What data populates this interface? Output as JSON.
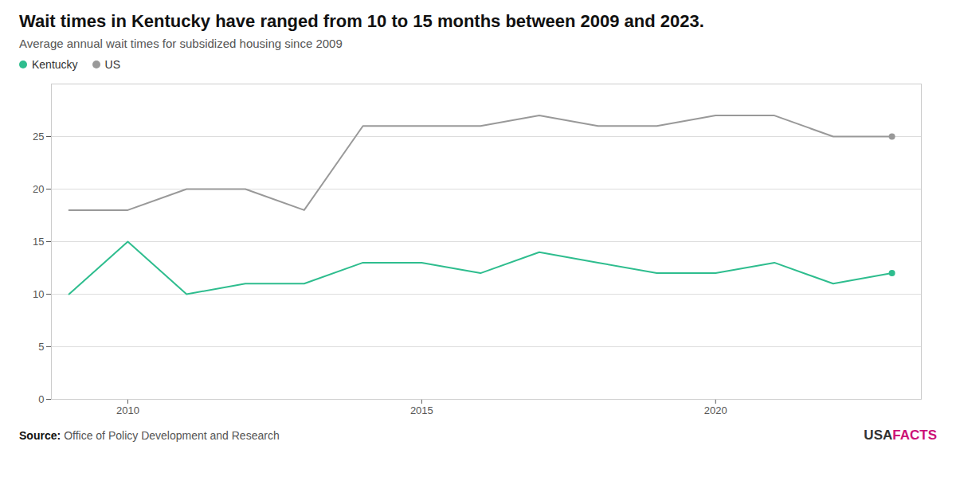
{
  "chart_data": {
    "type": "line",
    "title": "Wait times in Kentucky have ranged from 10 to 15 months between 2009 and 2023.",
    "subtitle": "Average annual wait times for subsidized housing since 2009",
    "source_label": "Source:",
    "source_text": "Office of Policy Development and Research",
    "branding": [
      {
        "text": "USA",
        "color": "#333333"
      },
      {
        "text": "FACTS",
        "color": "#cc1177"
      }
    ],
    "x": [
      2009,
      2010,
      2011,
      2012,
      2013,
      2014,
      2015,
      2016,
      2017,
      2018,
      2019,
      2020,
      2021,
      2022,
      2023
    ],
    "series": [
      {
        "name": "Kentucky",
        "color": "#2ebd8e",
        "values": [
          10,
          15,
          10,
          11,
          11,
          13,
          13,
          12,
          14,
          13,
          12,
          12,
          13,
          11,
          12
        ]
      },
      {
        "name": "US",
        "color": "#999999",
        "values": [
          18,
          18,
          20,
          20,
          18,
          26,
          26,
          26,
          27,
          26,
          26,
          27,
          27,
          25,
          25
        ]
      }
    ],
    "xlim": [
      2008.7,
      2023.5
    ],
    "xticks": [
      2010,
      2015,
      2020
    ],
    "ylim": [
      0,
      30
    ],
    "yticks": [
      0,
      5,
      10,
      15,
      20,
      25
    ],
    "grid": true,
    "legend": "top-left"
  }
}
